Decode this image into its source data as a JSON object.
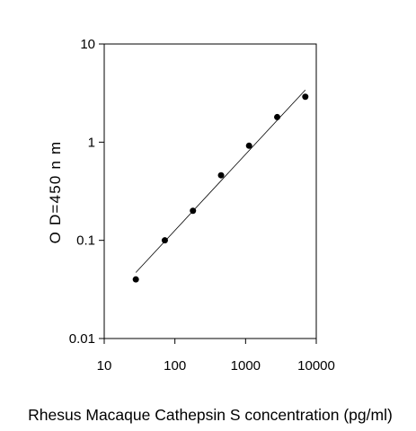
{
  "chart_data": {
    "type": "scatter",
    "title": "",
    "xlabel": "Rhesus Macaque Cathepsin S concentration (pg/ml)",
    "ylabel": "O D=450 n m",
    "x_scale": "log",
    "y_scale": "log",
    "xlim": [
      10,
      10000
    ],
    "ylim": [
      0.01,
      10
    ],
    "x_ticks": [
      "10",
      "100",
      "1000",
      "10000"
    ],
    "y_ticks": [
      "0.01",
      "0.1",
      "1",
      "10"
    ],
    "grid": false,
    "legend": "none",
    "points": [
      {
        "x": 28,
        "y": 0.04
      },
      {
        "x": 72,
        "y": 0.1
      },
      {
        "x": 180,
        "y": 0.2
      },
      {
        "x": 450,
        "y": 0.46
      },
      {
        "x": 1120,
        "y": 0.92
      },
      {
        "x": 2800,
        "y": 1.8
      },
      {
        "x": 7000,
        "y": 2.9
      }
    ],
    "fit_line": {
      "x": [
        28,
        7000
      ],
      "y": [
        0.047,
        3.4
      ]
    },
    "colors": {
      "points": "#000000",
      "line": "#000000",
      "axes": "#000000"
    }
  }
}
